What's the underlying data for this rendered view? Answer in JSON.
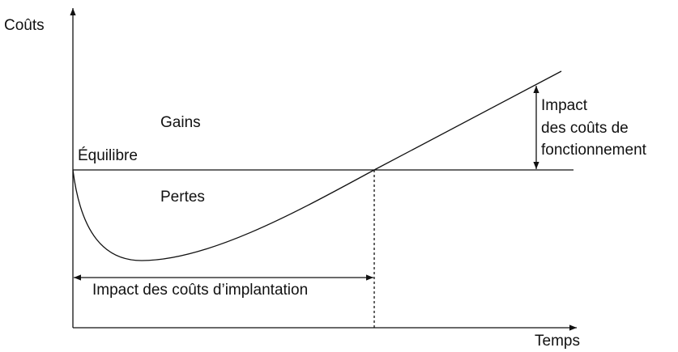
{
  "axes": {
    "y_label": "Coûts",
    "x_label": "Temps"
  },
  "regions": {
    "gains": "Gains",
    "equilibrium": "Équilibre",
    "losses": "Pertes"
  },
  "annotations": {
    "implementation": "Impact des coûts d’implantation",
    "operating": [
      "Impact",
      "des coûts de",
      "fonctionnement"
    ]
  }
}
